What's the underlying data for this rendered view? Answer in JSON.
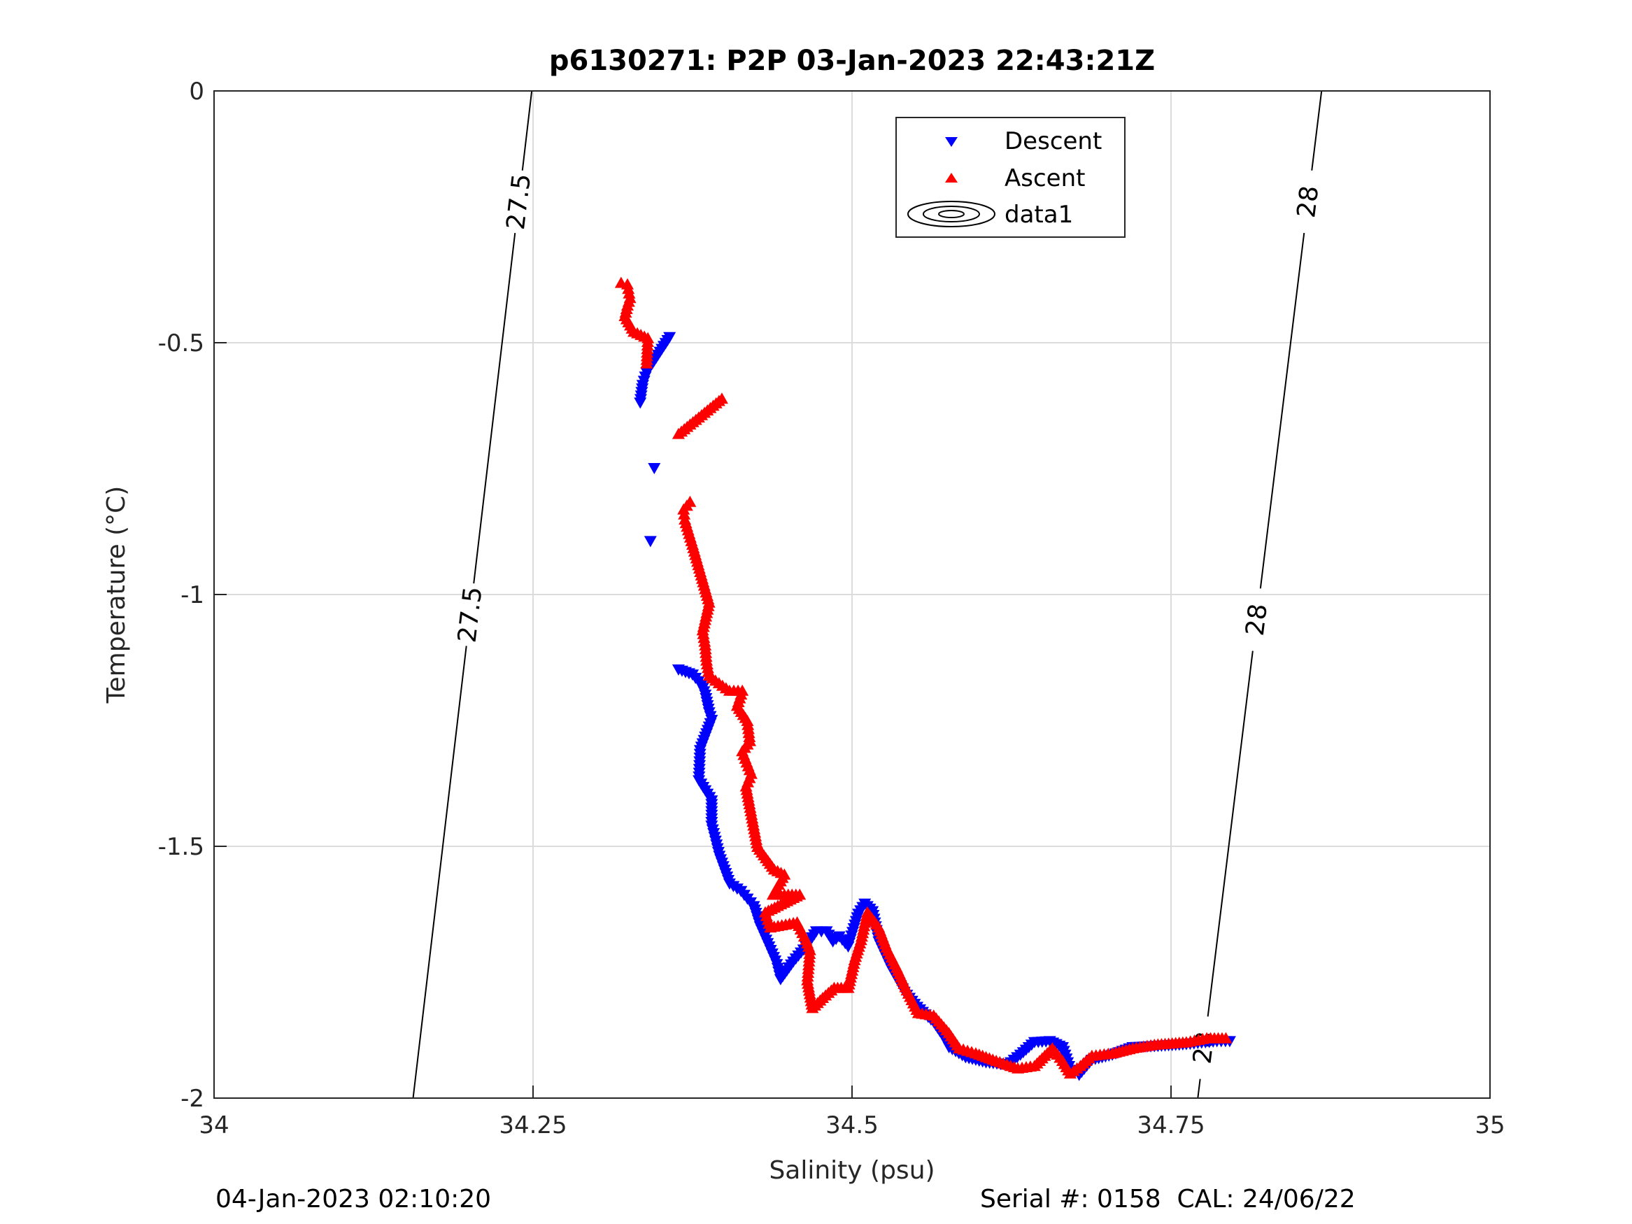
{
  "chart_data": {
    "type": "scatter",
    "title": "p6130271: P2P 03-Jan-2023 22:43:21Z",
    "xlabel": "Salinity (psu)",
    "ylabel": "Temperature (°C)",
    "xlim": [
      34,
      35
    ],
    "ylim": [
      -2,
      0
    ],
    "xticks": [
      34,
      34.25,
      34.5,
      34.75,
      35
    ],
    "xtick_labels": [
      "34",
      "34.25",
      "34.5",
      "34.75",
      "35"
    ],
    "yticks": [
      0,
      -0.5,
      -1,
      -1.5,
      -2
    ],
    "ytick_labels": [
      "0",
      "-0.5",
      "-1",
      "-1.5",
      "-2"
    ],
    "grid": true,
    "legend": {
      "placement": "top-center",
      "entries": [
        "Descent",
        "Ascent",
        "data1"
      ]
    },
    "colors": {
      "descent": "#0000ff",
      "ascent": "#ff0000",
      "contour": "#000000"
    },
    "contours": [
      {
        "level": "27.5",
        "points": [
          [
            34.156,
            -2
          ],
          [
            34.249,
            0
          ]
        ],
        "label_t": [
          -0.22,
          -1.04
        ]
      },
      {
        "level": "28",
        "points": [
          [
            34.771,
            -2
          ],
          [
            34.868,
            0
          ]
        ],
        "label_t": [
          -0.22,
          -1.05,
          -1.9
        ]
      }
    ],
    "series": [
      {
        "name": "Descent",
        "marker": "triangle-down",
        "points": [
          [
            34.357,
            -0.49
          ],
          [
            34.339,
            -0.56
          ],
          [
            34.336,
            -0.585
          ],
          [
            34.334,
            -0.62
          ],
          [
            34.345,
            -0.75
          ],
          [
            34.342,
            -0.895
          ],
          [
            34.364,
            -1.15
          ],
          [
            34.375,
            -1.16
          ],
          [
            34.382,
            -1.18
          ],
          [
            34.385,
            -1.2
          ],
          [
            34.388,
            -1.235
          ],
          [
            34.39,
            -1.25
          ],
          [
            34.381,
            -1.31
          ],
          [
            34.38,
            -1.37
          ],
          [
            34.39,
            -1.41
          ],
          [
            34.39,
            -1.46
          ],
          [
            34.396,
            -1.52
          ],
          [
            34.404,
            -1.575
          ],
          [
            34.413,
            -1.59
          ],
          [
            34.418,
            -1.605
          ],
          [
            34.423,
            -1.62
          ],
          [
            34.428,
            -1.66
          ],
          [
            34.435,
            -1.7
          ],
          [
            34.441,
            -1.735
          ],
          [
            34.444,
            -1.765
          ],
          [
            34.454,
            -1.73
          ],
          [
            34.464,
            -1.7
          ],
          [
            34.472,
            -1.67
          ],
          [
            34.48,
            -1.67
          ],
          [
            34.485,
            -1.69
          ],
          [
            34.49,
            -1.68
          ],
          [
            34.497,
            -1.7
          ],
          [
            34.505,
            -1.635
          ],
          [
            34.51,
            -1.615
          ],
          [
            34.516,
            -1.63
          ],
          [
            34.521,
            -1.69
          ],
          [
            34.531,
            -1.745
          ],
          [
            34.541,
            -1.79
          ],
          [
            34.551,
            -1.82
          ],
          [
            34.564,
            -1.85
          ],
          [
            34.572,
            -1.88
          ],
          [
            34.576,
            -1.9
          ],
          [
            34.589,
            -1.92
          ],
          [
            34.605,
            -1.93
          ],
          [
            34.622,
            -1.935
          ],
          [
            34.632,
            -1.915
          ],
          [
            34.643,
            -1.89
          ],
          [
            34.655,
            -1.888
          ],
          [
            34.665,
            -1.9
          ],
          [
            34.671,
            -1.945
          ],
          [
            34.678,
            -1.955
          ],
          [
            34.688,
            -1.925
          ],
          [
            34.704,
            -1.915
          ],
          [
            34.72,
            -1.9
          ],
          [
            34.737,
            -1.898
          ],
          [
            34.762,
            -1.894
          ],
          [
            34.786,
            -1.888
          ],
          [
            34.796,
            -1.888
          ]
        ]
      },
      {
        "name": "Ascent",
        "marker": "triangle-up",
        "points": [
          [
            34.319,
            -0.38
          ],
          [
            34.324,
            -0.383
          ],
          [
            34.326,
            -0.41
          ],
          [
            34.324,
            -0.425
          ],
          [
            34.322,
            -0.446
          ],
          [
            34.329,
            -0.477
          ],
          [
            34.34,
            -0.49
          ],
          [
            34.339,
            -0.54
          ],
          [
            34.398,
            -0.61
          ],
          [
            34.364,
            -0.68
          ],
          [
            34.373,
            -0.815
          ],
          [
            34.368,
            -0.83
          ],
          [
            34.369,
            -0.85
          ],
          [
            34.375,
            -0.9
          ],
          [
            34.388,
            -1.015
          ],
          [
            34.383,
            -1.07
          ],
          [
            34.385,
            -1.1
          ],
          [
            34.386,
            -1.13
          ],
          [
            34.388,
            -1.16
          ],
          [
            34.393,
            -1.17
          ],
          [
            34.404,
            -1.19
          ],
          [
            34.414,
            -1.19
          ],
          [
            34.41,
            -1.22
          ],
          [
            34.418,
            -1.25
          ],
          [
            34.42,
            -1.29
          ],
          [
            34.414,
            -1.31
          ],
          [
            34.421,
            -1.355
          ],
          [
            34.417,
            -1.38
          ],
          [
            34.426,
            -1.5
          ],
          [
            34.439,
            -1.545
          ],
          [
            34.447,
            -1.555
          ],
          [
            34.438,
            -1.595
          ],
          [
            34.459,
            -1.595
          ],
          [
            34.432,
            -1.63
          ],
          [
            34.436,
            -1.66
          ],
          [
            34.457,
            -1.65
          ],
          [
            34.464,
            -1.685
          ],
          [
            34.467,
            -1.705
          ],
          [
            34.465,
            -1.765
          ],
          [
            34.469,
            -1.82
          ],
          [
            34.477,
            -1.8
          ],
          [
            34.486,
            -1.78
          ],
          [
            34.497,
            -1.78
          ],
          [
            34.502,
            -1.725
          ],
          [
            34.507,
            -1.685
          ],
          [
            34.512,
            -1.63
          ],
          [
            34.521,
            -1.66
          ],
          [
            34.527,
            -1.7
          ],
          [
            34.535,
            -1.74
          ],
          [
            34.543,
            -1.785
          ],
          [
            34.552,
            -1.83
          ],
          [
            34.564,
            -1.835
          ],
          [
            34.576,
            -1.87
          ],
          [
            34.584,
            -1.9
          ],
          [
            34.597,
            -1.91
          ],
          [
            34.613,
            -1.925
          ],
          [
            34.63,
            -1.94
          ],
          [
            34.643,
            -1.935
          ],
          [
            34.651,
            -1.915
          ],
          [
            34.657,
            -1.9
          ],
          [
            34.665,
            -1.925
          ],
          [
            34.671,
            -1.95
          ],
          [
            34.679,
            -1.935
          ],
          [
            34.688,
            -1.915
          ],
          [
            34.704,
            -1.91
          ],
          [
            34.72,
            -1.9
          ],
          [
            34.737,
            -1.893
          ],
          [
            34.762,
            -1.888
          ],
          [
            34.778,
            -1.88
          ],
          [
            34.793,
            -1.88
          ]
        ]
      }
    ]
  },
  "footer": {
    "timestamp": "04-Jan-2023 02:10:20",
    "serial": "Serial #: 0158  CAL: 24/06/22"
  }
}
